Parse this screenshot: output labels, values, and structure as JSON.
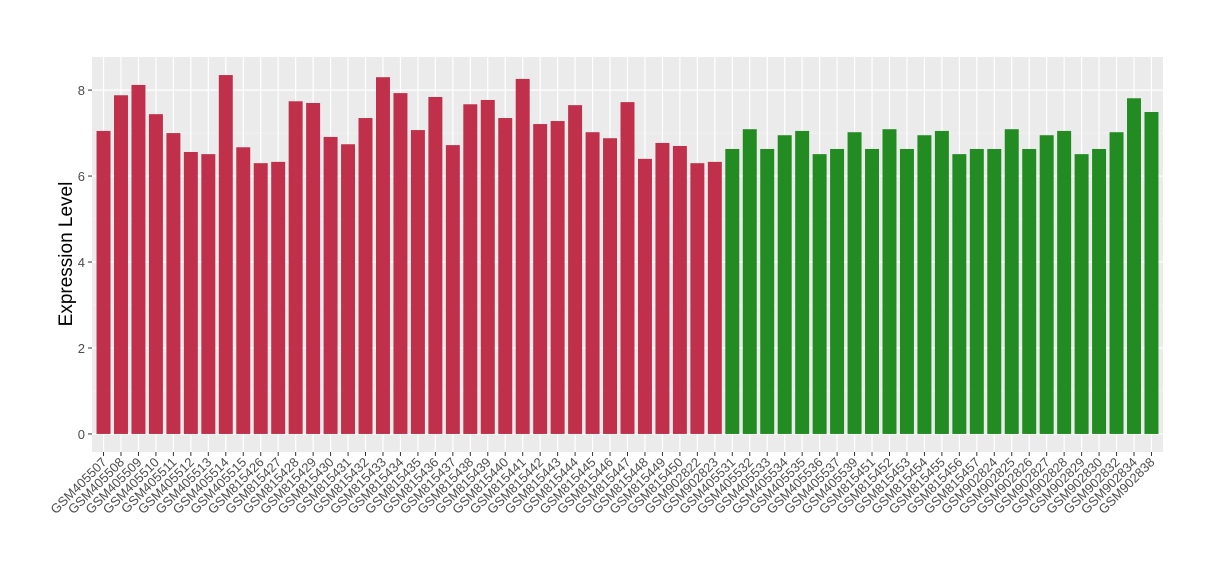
{
  "chart_data": {
    "type": "bar",
    "y_label": "Expression Level",
    "categories": [
      "GSM405507",
      "GSM405508",
      "GSM405509",
      "GSM405510",
      "GSM405511",
      "GSM405512",
      "GSM405513",
      "GSM405514",
      "GSM405515",
      "GSM815426",
      "GSM815427",
      "GSM815428",
      "GSM815429",
      "GSM815430",
      "GSM815431",
      "GSM815432",
      "GSM815433",
      "GSM815434",
      "GSM815435",
      "GSM815436",
      "GSM815437",
      "GSM815438",
      "GSM815439",
      "GSM815440",
      "GSM815441",
      "GSM815442",
      "GSM815443",
      "GSM815444",
      "GSM815445",
      "GSM815446",
      "GSM815447",
      "GSM815448",
      "GSM815449",
      "GSM815450",
      "GSM902822",
      "GSM902823",
      "GSM405531",
      "GSM405532",
      "GSM405533",
      "GSM405534",
      "GSM405535",
      "GSM405536",
      "GSM405537",
      "GSM405539",
      "GSM815451",
      "GSM815452",
      "GSM815453",
      "GSM815454",
      "GSM815455",
      "GSM815456",
      "GSM815457",
      "GSM902824",
      "GSM902825",
      "GSM902826",
      "GSM902827",
      "GSM902828",
      "GSM902829",
      "GSM902830",
      "GSM902832",
      "GSM902834",
      "GSM902838"
    ],
    "values": [
      7.05,
      7.88,
      8.12,
      7.44,
      7.0,
      6.56,
      6.51,
      8.35,
      6.67,
      6.3,
      6.33,
      7.74,
      7.7,
      6.91,
      6.74,
      7.35,
      8.3,
      7.93,
      7.07,
      7.84,
      6.72,
      7.67,
      7.77,
      7.35,
      8.26,
      7.21,
      7.28,
      7.65,
      7.02,
      6.88,
      7.72,
      6.4,
      6.77,
      6.7,
      6.3,
      6.33,
      6.63,
      7.09,
      6.63,
      6.95,
      7.05,
      6.51,
      6.63,
      7.02,
      6.63,
      7.09,
      6.63,
      6.95,
      7.05,
      6.51,
      6.63,
      6.63,
      7.09,
      6.63,
      6.95,
      7.05,
      6.51,
      6.63,
      7.02,
      7.81,
      7.49
    ],
    "bar_colors": [
      "#c0304a",
      "#c0304a",
      "#c0304a",
      "#c0304a",
      "#c0304a",
      "#c0304a",
      "#c0304a",
      "#c0304a",
      "#c0304a",
      "#c0304a",
      "#c0304a",
      "#c0304a",
      "#c0304a",
      "#c0304a",
      "#c0304a",
      "#c0304a",
      "#c0304a",
      "#c0304a",
      "#c0304a",
      "#c0304a",
      "#c0304a",
      "#c0304a",
      "#c0304a",
      "#c0304a",
      "#c0304a",
      "#c0304a",
      "#c0304a",
      "#c0304a",
      "#c0304a",
      "#c0304a",
      "#c0304a",
      "#c0304a",
      "#c0304a",
      "#c0304a",
      "#c0304a",
      "#c0304a",
      "#228b22",
      "#228b22",
      "#228b22",
      "#228b22",
      "#228b22",
      "#228b22",
      "#228b22",
      "#228b22",
      "#228b22",
      "#228b22",
      "#228b22",
      "#228b22",
      "#228b22",
      "#228b22",
      "#228b22",
      "#228b22",
      "#228b22",
      "#228b22",
      "#228b22",
      "#228b22",
      "#228b22",
      "#228b22",
      "#228b22",
      "#228b22",
      "#228b22"
    ],
    "ylim": [
      -0.42,
      8.77
    ],
    "yticks": [
      0,
      2,
      4,
      6,
      8
    ],
    "grid": true
  }
}
